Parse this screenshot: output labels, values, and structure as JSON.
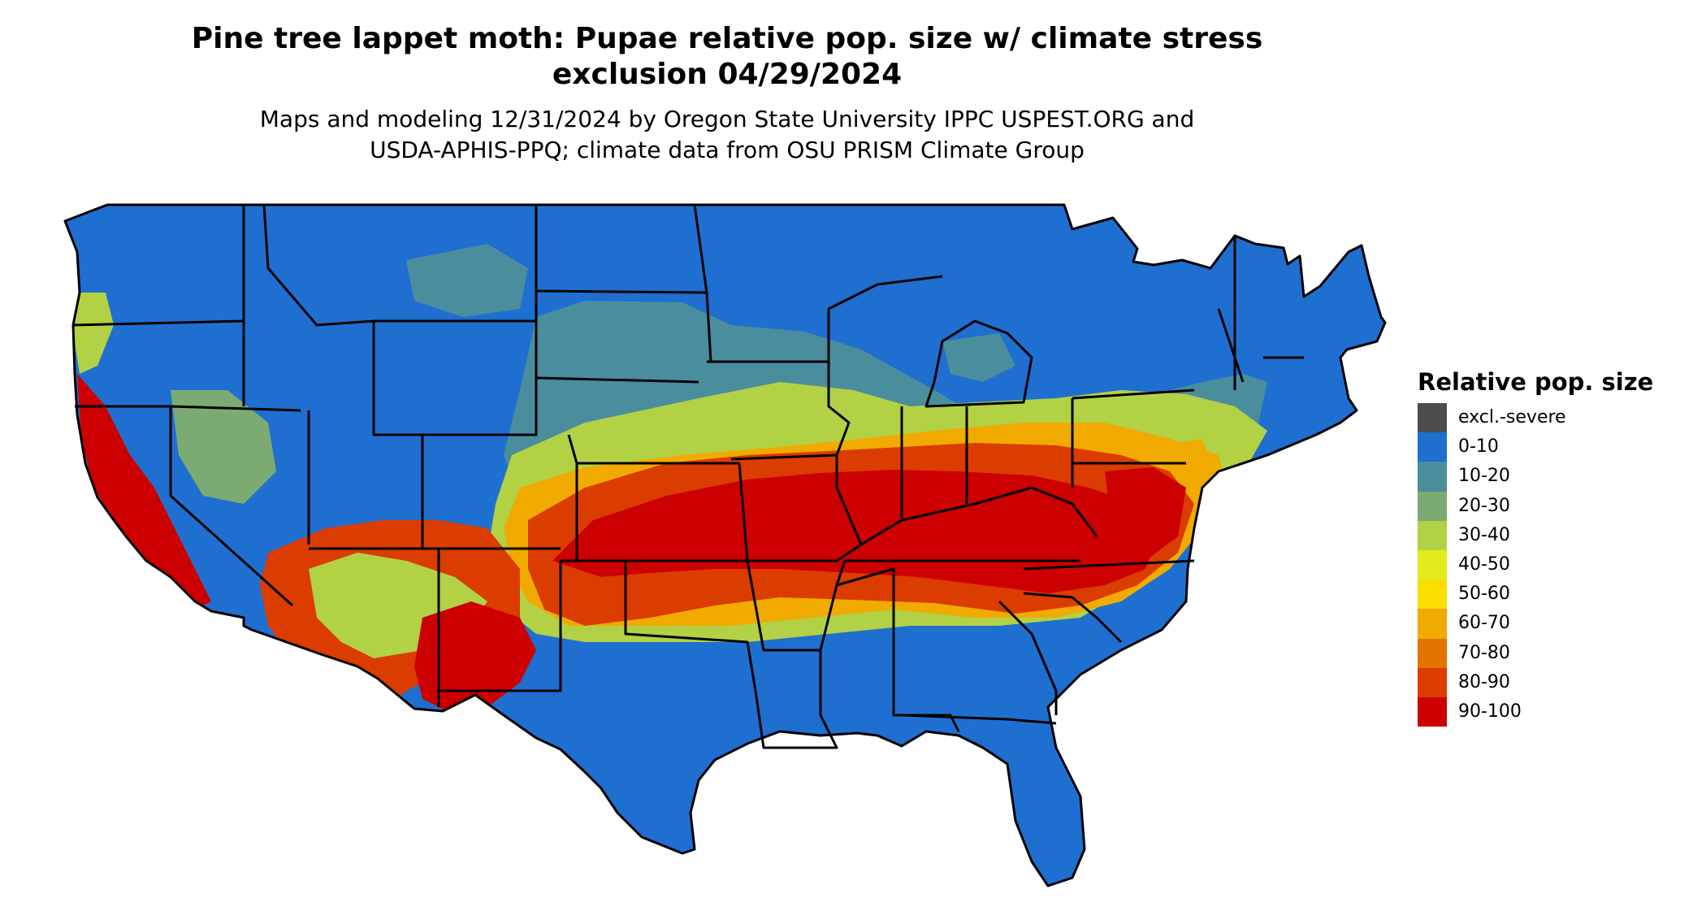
{
  "title_line1": "Pine tree lappet moth: Pupae relative pop. size w/ climate stress",
  "title_line2": "exclusion 04/29/2024",
  "subtitle_line1": "Maps and modeling 12/31/2024 by Oregon State University IPPC USPEST.ORG and",
  "subtitle_line2": "USDA-APHIS-PPQ; climate data from OSU PRISM Climate Group",
  "map": {
    "region": "Contiguous United States",
    "base_color": "#1f6fd0",
    "border_color": "#000000"
  },
  "legend": {
    "title": "Relative pop. size",
    "items": [
      {
        "label": "excl.-severe",
        "color": "#4d4d4d"
      },
      {
        "label": "0-10",
        "color": "#1f6fd0"
      },
      {
        "label": "10-20",
        "color": "#4a8e9e"
      },
      {
        "label": "20-30",
        "color": "#7bab72"
      },
      {
        "label": "30-40",
        "color": "#b2d145"
      },
      {
        "label": "40-50",
        "color": "#e2ec1c"
      },
      {
        "label": "50-60",
        "color": "#fadf00"
      },
      {
        "label": "60-70",
        "color": "#f0aa00"
      },
      {
        "label": "70-80",
        "color": "#e47400"
      },
      {
        "label": "80-90",
        "color": "#db3c00"
      },
      {
        "label": "90-100",
        "color": "#cc0000"
      }
    ]
  }
}
